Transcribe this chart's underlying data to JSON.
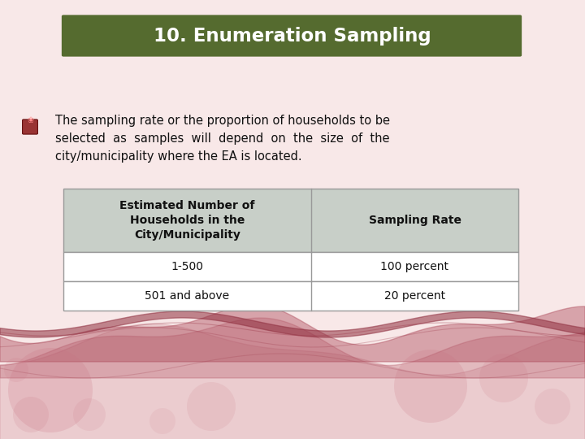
{
  "title": "10. Enumeration Sampling",
  "title_bg_color": "#556b2f",
  "title_text_color": "#ffffff",
  "bg_color": "#f8e8e8",
  "bullet_color": "#8b2020",
  "table_header_col1": "Estimated Number of\nHouseholds in the\nCity/Municipality",
  "table_header_col2": "Sampling Rate",
  "table_header_bg": "#c8cfc8",
  "table_row1_col1": "1-500",
  "table_row1_col2": "100 percent",
  "table_row2_col1": "501 and above",
  "table_row2_col2": "20 percent",
  "table_border_color": "#999999",
  "wave_color": "#b05060",
  "circle_color": "#c87080",
  "fig_width": 7.2,
  "fig_height": 5.4,
  "dpi": 100
}
